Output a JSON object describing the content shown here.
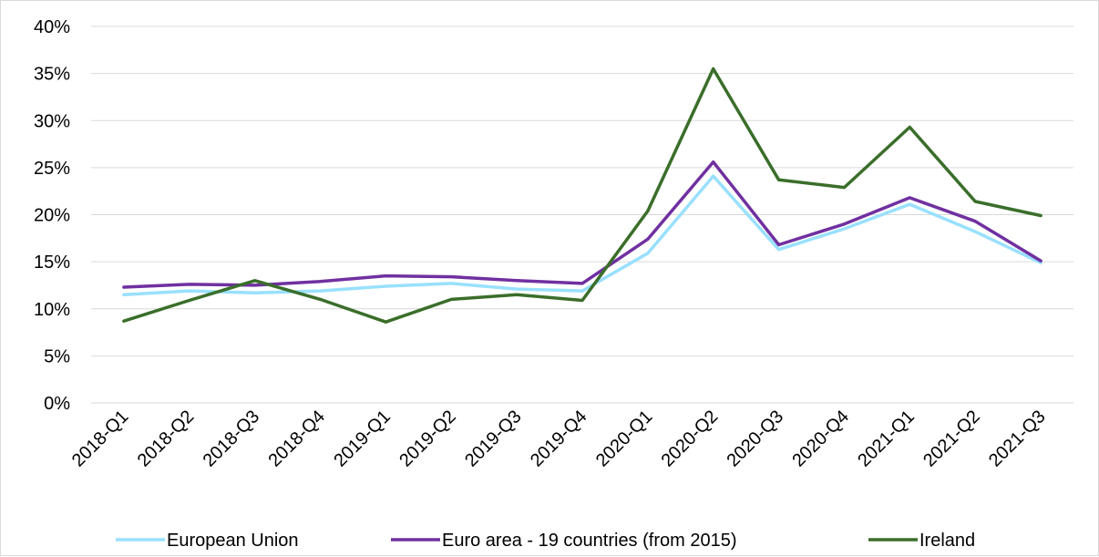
{
  "chart_data": {
    "type": "line",
    "title": "",
    "xlabel": "",
    "ylabel": "",
    "categories": [
      "2018-Q1",
      "2018-Q2",
      "2018-Q3",
      "2018-Q4",
      "2019-Q1",
      "2019-Q2",
      "2019-Q3",
      "2019-Q4",
      "2020-Q1",
      "2020-Q2",
      "2020-Q3",
      "2020-Q4",
      "2021-Q1",
      "2021-Q2",
      "2021-Q3"
    ],
    "ylim": [
      0,
      40
    ],
    "yticks": [
      "0%",
      "5%",
      "10%",
      "15%",
      "20%",
      "25%",
      "30%",
      "35%",
      "40%"
    ],
    "yticks_values": [
      0,
      5,
      10,
      15,
      20,
      25,
      30,
      35,
      40
    ],
    "grid": true,
    "legend_position": "bottom",
    "series": [
      {
        "name": "European Union",
        "color": "#99e0ff",
        "values": [
          11.5,
          11.9,
          11.7,
          11.9,
          12.4,
          12.7,
          12.1,
          11.9,
          15.9,
          24.1,
          16.3,
          18.5,
          21.1,
          18.2,
          14.9
        ]
      },
      {
        "name": "Euro area - 19 countries  (from 2015)",
        "color": "#7030a0",
        "values": [
          12.3,
          12.6,
          12.5,
          12.9,
          13.5,
          13.4,
          13.0,
          12.7,
          17.4,
          25.6,
          16.8,
          19.0,
          21.8,
          19.3,
          15.1
        ]
      },
      {
        "name": "Ireland",
        "color": "#3a6e2a",
        "values": [
          8.7,
          10.9,
          13.0,
          11.0,
          8.6,
          11.0,
          11.5,
          10.9,
          20.4,
          35.5,
          23.7,
          22.9,
          29.3,
          21.4,
          19.9
        ]
      }
    ]
  }
}
